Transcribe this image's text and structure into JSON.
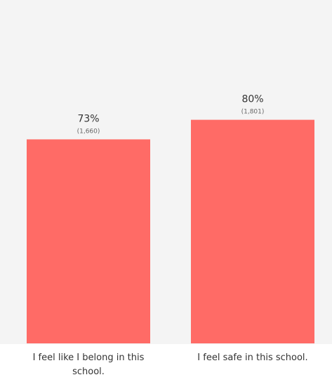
{
  "chart_data": {
    "type": "bar",
    "categories": [
      [
        "I feel like I belong in this",
        "school."
      ],
      [
        "I feel safe in this school."
      ]
    ],
    "values": [
      73,
      80
    ],
    "value_labels": [
      "73%",
      "80%"
    ],
    "count_labels": [
      "(1,660)",
      "(1,801)"
    ],
    "ylim": [
      0,
      100
    ],
    "grid": false,
    "bar_color": "#ff6b66",
    "background_color": "#f4f4f4"
  }
}
